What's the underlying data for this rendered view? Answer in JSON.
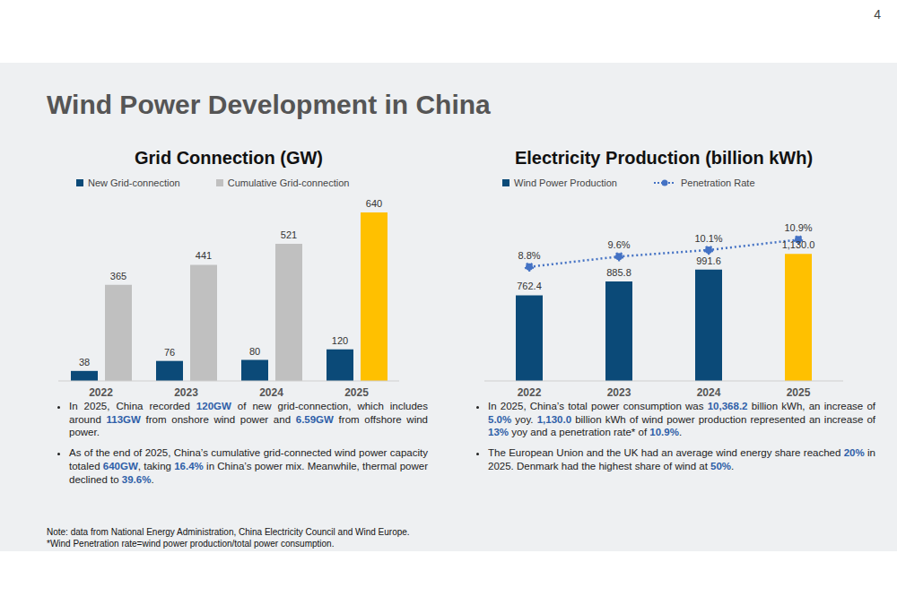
{
  "page": "4",
  "title": "Wind Power Development in China",
  "chart_data": [
    {
      "type": "bar",
      "title": "Grid Connection (GW)",
      "categories": [
        "2022",
        "2023",
        "2024",
        "2025"
      ],
      "series": [
        {
          "name": "New Grid-connection",
          "color": "#0b4a78",
          "values": [
            38,
            76,
            80,
            120
          ]
        },
        {
          "name": "Cumulative Grid-connection",
          "color": "#c0c0c0",
          "colors": [
            "#c0c0c0",
            "#c0c0c0",
            "#c0c0c0",
            "#ffc000"
          ],
          "values": [
            365,
            441,
            521,
            640
          ]
        }
      ],
      "ylim": [
        0,
        640
      ],
      "data_labels": true,
      "tick_labels": "x",
      "grid": false,
      "legend": "top",
      "annotations": [
        "In 2025, China recorded 120GW of new grid-connection, which includes around 113GW from onshore wind power and 6.59GW from offshore wind power.",
        "As of the end of 2025, China’s cumulative grid-connected wind power capacity totaled 640GW, taking 16.4% in China’s power mix. Meanwhile, thermal power declined to 39.6%."
      ]
    },
    {
      "type": "bar",
      "title": "Electricity Production (billion kWh)",
      "categories": [
        "2022",
        "2023",
        "2024",
        "2025"
      ],
      "series": [
        {
          "name": "Wind Power Production",
          "type": "bar",
          "color": "#0b4a78",
          "colors": [
            "#0b4a78",
            "#0b4a78",
            "#0b4a78",
            "#ffc000"
          ],
          "values": [
            762.4,
            885.8,
            991.6,
            1130.0
          ],
          "value_labels": [
            "762.4",
            "885.8",
            "991.6",
            "1,130.0"
          ]
        },
        {
          "name": "Penetration Rate",
          "type": "line",
          "axis": "y2",
          "color": "#4472c4",
          "marker": "circle",
          "line_style": "dotted",
          "values": [
            8.8,
            9.6,
            10.1,
            10.9
          ],
          "value_labels": [
            "8.8%",
            "9.6%",
            "10.1%",
            "10.9%"
          ]
        }
      ],
      "ylim": [
        0,
        1500
      ],
      "y2lim": [
        0,
        13
      ],
      "data_labels": true,
      "tick_labels": "x",
      "grid": false,
      "legend": "top",
      "annotations": [
        "In 2025, China’s total power consumption was 10,368.2 billion kWh, an increase of 5.0% yoy. 1,130.0 billion kWh of wind power production represented an increase of 13% yoy and a penetration rate* of 10.9%.",
        "The European Union and the UK had an average wind energy share reached 20% in 2025. Denmark had the highest share of wind at 50%."
      ]
    }
  ],
  "notes": [
    "Note: data from National Energy Administration, China Electricity Council and Wind Europe.",
    "*Wind Penetration rate=wind power production/total power consumption."
  ]
}
